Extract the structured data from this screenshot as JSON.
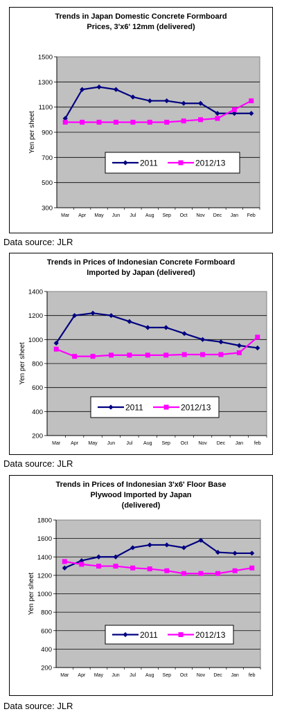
{
  "sources": [
    "Data source: JLR",
    "Data source: JLR",
    "Data source: JLR"
  ],
  "chart_data": [
    {
      "type": "line",
      "title_lines": [
        "Trends in Japan Domestic Concrete Formboard",
        "Prices, 3'x6' 12mm (delivered)"
      ],
      "ylabel": "Yen per sheet",
      "xlabel": "",
      "categories": [
        "Mar",
        "Apr",
        "May",
        "Jun",
        "Jul",
        "Aug",
        "Sep",
        "Oct",
        "Nov",
        "Dec",
        "Jan",
        "Feb"
      ],
      "ylim": [
        300,
        1500
      ],
      "yticks": [
        300,
        500,
        700,
        900,
        1100,
        1300,
        1500
      ],
      "grid": true,
      "legend": "center",
      "series": [
        {
          "name": "2011",
          "color": "#000080",
          "marker": "diamond",
          "values": [
            1010,
            1240,
            1260,
            1240,
            1180,
            1150,
            1150,
            1130,
            1130,
            1050,
            1050,
            1050
          ]
        },
        {
          "name": "2012/13",
          "color": "#ff00ff",
          "marker": "square",
          "values": [
            980,
            980,
            980,
            980,
            980,
            980,
            980,
            990,
            1000,
            1010,
            1080,
            1150
          ]
        }
      ]
    },
    {
      "type": "line",
      "title_lines": [
        "Trends in Prices of Indonesian Concrete Formboard",
        "Imported by Japan (delivered)"
      ],
      "ylabel": "Yen per sheet",
      "xlabel": "",
      "categories": [
        "Mar",
        "Apr",
        "May",
        "Jun",
        "Jul",
        "Aug",
        "Sep",
        "Oct",
        "Nov",
        "Dec",
        "Jan",
        "feb"
      ],
      "ylim": [
        200,
        1400
      ],
      "yticks": [
        200,
        400,
        600,
        800,
        1000,
        1200,
        1400
      ],
      "grid": true,
      "legend": "lower-center",
      "series": [
        {
          "name": "2011",
          "color": "#000080",
          "marker": "diamond",
          "values": [
            970,
            1200,
            1220,
            1200,
            1150,
            1100,
            1100,
            1050,
            1000,
            980,
            950,
            930
          ]
        },
        {
          "name": "2012/13",
          "color": "#ff00ff",
          "marker": "square",
          "values": [
            920,
            860,
            860,
            870,
            870,
            870,
            870,
            875,
            875,
            875,
            890,
            1020
          ]
        }
      ]
    },
    {
      "type": "line",
      "title_lines": [
        "Trends in Prices of Indonesian 3'x6' Floor Base",
        "Plywood Imported by Japan",
        "(delivered)"
      ],
      "ylabel": "Yen per sheet",
      "xlabel": "",
      "categories": [
        "Mar",
        "Apr",
        "May",
        "Jun",
        "Jul",
        "Aug",
        "Sep",
        "Oct",
        "Nov",
        "Dec",
        "Jan",
        "feb"
      ],
      "ylim": [
        200,
        1800
      ],
      "yticks": [
        200,
        400,
        600,
        800,
        1000,
        1200,
        1400,
        1600,
        1800
      ],
      "grid": true,
      "legend": "lower-center",
      "series": [
        {
          "name": "2011",
          "color": "#000080",
          "marker": "diamond",
          "values": [
            1280,
            1360,
            1400,
            1400,
            1500,
            1530,
            1530,
            1500,
            1580,
            1450,
            1440,
            1440
          ]
        },
        {
          "name": "2012/13",
          "color": "#ff00ff",
          "marker": "square",
          "values": [
            1350,
            1320,
            1300,
            1300,
            1280,
            1270,
            1250,
            1220,
            1220,
            1220,
            1250,
            1280
          ]
        }
      ]
    }
  ]
}
